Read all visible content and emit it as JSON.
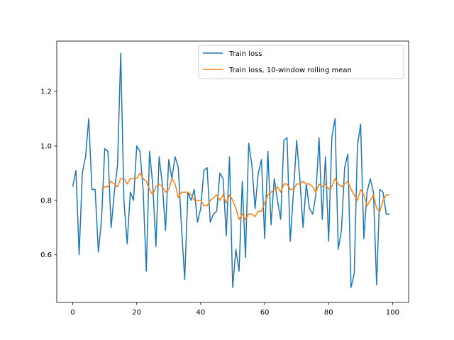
{
  "chart_data": {
    "type": "line",
    "title": "",
    "xlabel": "",
    "ylabel": "",
    "xlim": [
      -5,
      105
    ],
    "ylim": [
      0.425,
      1.385
    ],
    "xticks": [
      0,
      20,
      40,
      60,
      80,
      100
    ],
    "yticks": [
      0.6,
      0.8,
      1.0,
      1.2
    ],
    "xtick_labels": [
      "0",
      "20",
      "40",
      "60",
      "80",
      "100"
    ],
    "ytick_labels": [
      "0.6",
      "0.8",
      "1.0",
      "1.2"
    ],
    "grid": false,
    "legend_position": "top-right",
    "series": [
      {
        "name": "Train loss",
        "color": "#1f77b4",
        "x": [
          0,
          1,
          2,
          3,
          4,
          5,
          6,
          7,
          8,
          9,
          10,
          11,
          12,
          13,
          14,
          15,
          16,
          17,
          18,
          19,
          20,
          21,
          22,
          23,
          24,
          25,
          26,
          27,
          28,
          29,
          30,
          31,
          32,
          33,
          34,
          35,
          36,
          37,
          38,
          39,
          40,
          41,
          42,
          43,
          44,
          45,
          46,
          47,
          48,
          49,
          50,
          51,
          52,
          53,
          54,
          55,
          56,
          57,
          58,
          59,
          60,
          61,
          62,
          63,
          64,
          65,
          66,
          67,
          68,
          69,
          70,
          71,
          72,
          73,
          74,
          75,
          76,
          77,
          78,
          79,
          80,
          81,
          82,
          83,
          84,
          85,
          86,
          87,
          88,
          89,
          90,
          91,
          92,
          93,
          94,
          95,
          96,
          97,
          98,
          99
        ],
        "y": [
          0.85,
          0.91,
          0.6,
          0.9,
          0.96,
          1.1,
          0.84,
          0.84,
          0.61,
          0.73,
          0.99,
          0.98,
          0.7,
          0.83,
          0.93,
          1.34,
          0.8,
          0.64,
          0.83,
          0.8,
          1.0,
          0.98,
          0.84,
          0.54,
          0.98,
          0.86,
          0.63,
          0.96,
          0.86,
          0.69,
          0.95,
          0.88,
          0.96,
          0.92,
          0.7,
          0.51,
          0.83,
          0.8,
          0.84,
          0.72,
          0.77,
          0.91,
          0.92,
          0.72,
          0.75,
          0.76,
          0.9,
          0.88,
          0.67,
          0.96,
          0.48,
          0.62,
          0.54,
          0.87,
          0.59,
          1.01,
          0.93,
          0.77,
          0.9,
          0.95,
          0.66,
          0.98,
          0.71,
          0.88,
          0.8,
          0.73,
          1.02,
          1.03,
          0.65,
          0.83,
          1.02,
          0.88,
          0.7,
          0.86,
          0.77,
          0.75,
          0.82,
          1.03,
          0.73,
          0.96,
          0.65,
          1.03,
          1.1,
          0.62,
          0.69,
          0.92,
          0.97,
          0.48,
          0.53,
          1.0,
          1.08,
          0.66,
          0.83,
          0.88,
          0.83,
          0.49,
          0.84,
          0.83,
          0.75,
          0.75
        ]
      },
      {
        "name": "Train loss, 10-window rolling mean",
        "color": "#ff7f0e",
        "x": [
          9,
          10,
          11,
          12,
          13,
          14,
          15,
          16,
          17,
          18,
          19,
          20,
          21,
          22,
          23,
          24,
          25,
          26,
          27,
          28,
          29,
          30,
          31,
          32,
          33,
          34,
          35,
          36,
          37,
          38,
          39,
          40,
          41,
          42,
          43,
          44,
          45,
          46,
          47,
          48,
          49,
          50,
          51,
          52,
          53,
          54,
          55,
          56,
          57,
          58,
          59,
          60,
          61,
          62,
          63,
          64,
          65,
          66,
          67,
          68,
          69,
          70,
          71,
          72,
          73,
          74,
          75,
          76,
          77,
          78,
          79,
          80,
          81,
          82,
          83,
          84,
          85,
          86,
          87,
          88,
          89,
          90,
          91,
          92,
          93,
          94,
          95,
          96,
          97,
          98,
          99
        ],
        "y": [
          0.84,
          0.85,
          0.85,
          0.87,
          0.86,
          0.85,
          0.88,
          0.88,
          0.86,
          0.88,
          0.88,
          0.88,
          0.9,
          0.88,
          0.87,
          0.84,
          0.82,
          0.85,
          0.86,
          0.85,
          0.83,
          0.84,
          0.88,
          0.86,
          0.81,
          0.83,
          0.83,
          0.83,
          0.82,
          0.8,
          0.8,
          0.8,
          0.78,
          0.78,
          0.8,
          0.81,
          0.82,
          0.8,
          0.82,
          0.79,
          0.82,
          0.8,
          0.77,
          0.73,
          0.75,
          0.73,
          0.75,
          0.75,
          0.74,
          0.76,
          0.76,
          0.79,
          0.82,
          0.83,
          0.84,
          0.85,
          0.83,
          0.86,
          0.86,
          0.84,
          0.84,
          0.86,
          0.86,
          0.87,
          0.86,
          0.86,
          0.85,
          0.83,
          0.86,
          0.85,
          0.86,
          0.84,
          0.85,
          0.88,
          0.86,
          0.85,
          0.86,
          0.87,
          0.84,
          0.82,
          0.8,
          0.84,
          0.82,
          0.78,
          0.8,
          0.82,
          0.77,
          0.76,
          0.8,
          0.82,
          0.82
        ]
      }
    ]
  }
}
